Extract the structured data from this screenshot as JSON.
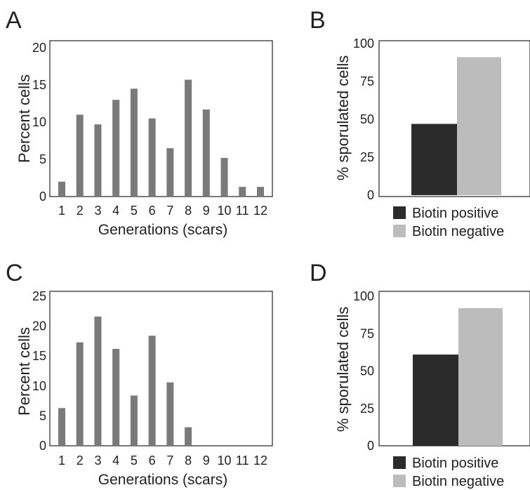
{
  "panels": [
    {
      "letter": "A",
      "chart_data": {
        "type": "bar",
        "categories": [
          "1",
          "2",
          "3",
          "4",
          "5",
          "6",
          "7",
          "8",
          "9",
          "10",
          "11",
          "12"
        ],
        "values": [
          2,
          11,
          9.7,
          13,
          14.5,
          10.5,
          6.5,
          15.7,
          11.7,
          5.2,
          1.3,
          1.3
        ],
        "xlabel": "Generations (scars)",
        "ylabel": "Percent cells",
        "ylim": [
          0,
          20
        ],
        "yticks": [
          0,
          5,
          10,
          15,
          20
        ],
        "bar_color": "#7a7a7a",
        "grid": false
      }
    },
    {
      "letter": "B",
      "chart_data": {
        "type": "bar",
        "categories": [
          "Biotin positive",
          "Biotin negative"
        ],
        "values": [
          47,
          91
        ],
        "xlabel": "",
        "ylabel": "% sporulated cells",
        "ylim": [
          0,
          100
        ],
        "yticks": [
          0,
          25,
          50,
          75,
          100
        ],
        "colors": [
          "#2b2b2b",
          "#bcbcbc"
        ],
        "legend": "bottom",
        "grid": false
      }
    },
    {
      "letter": "C",
      "chart_data": {
        "type": "bar",
        "categories": [
          "1",
          "2",
          "3",
          "4",
          "5",
          "6",
          "7",
          "8",
          "9",
          "10",
          "11",
          "12"
        ],
        "values": [
          6.3,
          17.3,
          21.6,
          16.2,
          8.4,
          18.4,
          10.6,
          3.1,
          0,
          0,
          0,
          0
        ],
        "xlabel": "Generations (scars)",
        "ylabel": "Percent cells",
        "ylim": [
          0,
          25
        ],
        "yticks": [
          0,
          5,
          10,
          15,
          20,
          25
        ],
        "bar_color": "#7a7a7a",
        "grid": false
      }
    },
    {
      "letter": "D",
      "chart_data": {
        "type": "bar",
        "categories": [
          "Biotin positive",
          "Biotin negative"
        ],
        "values": [
          61,
          92
        ],
        "xlabel": "",
        "ylabel": "% sporulated cells",
        "ylim": [
          0,
          100
        ],
        "yticks": [
          0,
          25,
          50,
          75,
          100
        ],
        "colors": [
          "#2b2b2b",
          "#bcbcbc"
        ],
        "legend": "bottom",
        "grid": false
      }
    }
  ]
}
